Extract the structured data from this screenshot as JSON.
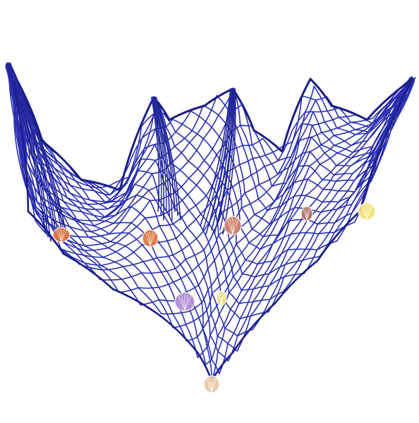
{
  "scene": {
    "subject": "fishing-net",
    "background_color": "#ffffff",
    "net_color": "#2a2fb0",
    "net_shadow_color": "#1a1f86",
    "shells": [
      {
        "name": "shell-orange-left",
        "color": "#e0763c"
      },
      {
        "name": "shell-orange-center",
        "color": "#e0763c"
      },
      {
        "name": "shell-pink-left",
        "color": "#d4806a"
      },
      {
        "name": "shell-striped-right",
        "color": "#b06a5a"
      },
      {
        "name": "shell-yellow-right",
        "color": "#f3e27a"
      },
      {
        "name": "shell-purple-center",
        "color": "#b68fd6"
      },
      {
        "name": "shell-yellow-center",
        "color": "#f0e07a"
      },
      {
        "name": "shell-cream-bottom",
        "color": "#e9c9a4"
      }
    ]
  }
}
